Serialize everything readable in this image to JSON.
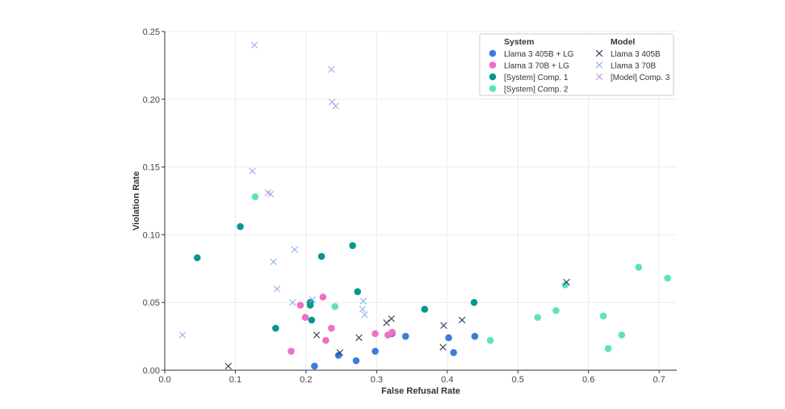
{
  "chart_data": {
    "type": "scatter",
    "title": "",
    "xlabel": "False Refusal Rate",
    "ylabel": "Violation Rate",
    "xlim": [
      0.0,
      0.725
    ],
    "ylim": [
      0.0,
      0.25
    ],
    "xticks": [
      0.0,
      0.1,
      0.2,
      0.3,
      0.4,
      0.5,
      0.6,
      0.7
    ],
    "yticks": [
      0.0,
      0.05,
      0.1,
      0.15,
      0.2,
      0.25
    ],
    "xtick_labels": [
      "0.0",
      "0.1",
      "0.2",
      "0.3",
      "0.4",
      "0.5",
      "0.6",
      "0.7"
    ],
    "ytick_labels": [
      "0.00",
      "0.05",
      "0.10",
      "0.15",
      "0.20",
      "0.25"
    ],
    "grid": true,
    "legend": {
      "placement": "top-right",
      "headers": [
        "System",
        "Model"
      ]
    },
    "series": [
      {
        "name": "Llama 3 405B + LG",
        "group": "System",
        "marker": "circle",
        "color": "#3b7ddd",
        "points": [
          [
            0.212,
            0.003
          ],
          [
            0.246,
            0.011
          ],
          [
            0.271,
            0.007
          ],
          [
            0.298,
            0.014
          ],
          [
            0.322,
            0.027
          ],
          [
            0.341,
            0.025
          ],
          [
            0.402,
            0.024
          ],
          [
            0.409,
            0.013
          ],
          [
            0.439,
            0.025
          ]
        ]
      },
      {
        "name": "Llama 3 70B + LG",
        "group": "System",
        "marker": "circle",
        "color": "#ee6fc4",
        "points": [
          [
            0.179,
            0.014
          ],
          [
            0.192,
            0.048
          ],
          [
            0.199,
            0.039
          ],
          [
            0.224,
            0.054
          ],
          [
            0.228,
            0.022
          ],
          [
            0.236,
            0.031
          ],
          [
            0.298,
            0.027
          ],
          [
            0.316,
            0.026
          ],
          [
            0.322,
            0.028
          ]
        ]
      },
      {
        "name": "[System] Comp. 1",
        "group": "System",
        "marker": "circle",
        "color": "#0a9690",
        "points": [
          [
            0.046,
            0.083
          ],
          [
            0.107,
            0.106
          ],
          [
            0.157,
            0.031
          ],
          [
            0.206,
            0.05
          ],
          [
            0.206,
            0.048
          ],
          [
            0.208,
            0.037
          ],
          [
            0.222,
            0.084
          ],
          [
            0.266,
            0.092
          ],
          [
            0.273,
            0.058
          ],
          [
            0.368,
            0.045
          ],
          [
            0.438,
            0.05
          ]
        ]
      },
      {
        "name": "[System] Comp. 2",
        "group": "System",
        "marker": "circle",
        "color": "#5fe0c4",
        "points": [
          [
            0.128,
            0.128
          ],
          [
            0.241,
            0.047
          ],
          [
            0.461,
            0.022
          ],
          [
            0.528,
            0.039
          ],
          [
            0.554,
            0.044
          ],
          [
            0.567,
            0.063
          ],
          [
            0.621,
            0.04
          ],
          [
            0.628,
            0.016
          ],
          [
            0.647,
            0.026
          ],
          [
            0.671,
            0.076
          ],
          [
            0.712,
            0.068
          ]
        ]
      },
      {
        "name": "Llama 3 405B",
        "group": "Model",
        "marker": "x",
        "color": "#2e3a4e",
        "points": [
          [
            0.09,
            0.003
          ],
          [
            0.215,
            0.026
          ],
          [
            0.248,
            0.013
          ],
          [
            0.275,
            0.024
          ],
          [
            0.314,
            0.035
          ],
          [
            0.321,
            0.038
          ],
          [
            0.394,
            0.017
          ],
          [
            0.395,
            0.033
          ],
          [
            0.421,
            0.037
          ],
          [
            0.569,
            0.065
          ]
        ]
      },
      {
        "name": "Llama 3 70B",
        "group": "Model",
        "marker": "x",
        "color": "#86b4ec",
        "points": [
          [
            0.025,
            0.026
          ],
          [
            0.154,
            0.08
          ],
          [
            0.159,
            0.06
          ],
          [
            0.181,
            0.05
          ],
          [
            0.184,
            0.089
          ],
          [
            0.209,
            0.052
          ],
          [
            0.28,
            0.045
          ],
          [
            0.281,
            0.051
          ],
          [
            0.283,
            0.041
          ]
        ]
      },
      {
        "name": "[Model] Comp. 3",
        "group": "Model",
        "marker": "x",
        "color": "#b4a0ee",
        "points": [
          [
            0.127,
            0.24
          ],
          [
            0.124,
            0.147
          ],
          [
            0.146,
            0.131
          ],
          [
            0.15,
            0.13
          ],
          [
            0.236,
            0.222
          ],
          [
            0.237,
            0.198
          ],
          [
            0.242,
            0.195
          ]
        ]
      }
    ]
  }
}
